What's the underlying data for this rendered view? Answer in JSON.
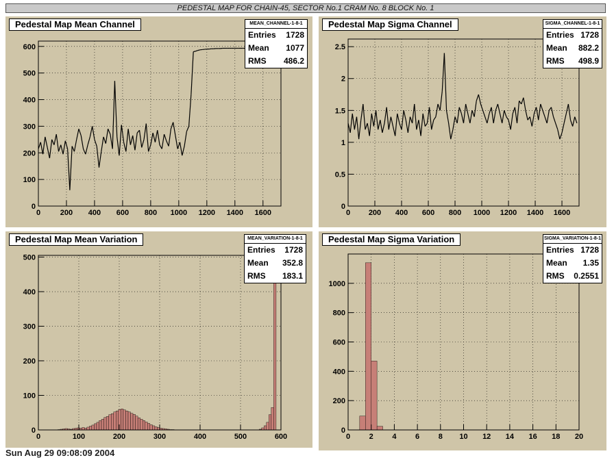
{
  "banner": "PEDESTAL MAP FOR CHAIN-45, SECTOR No.1 CRAM No. 8 BLOCK No. 1",
  "footer": "Sun Aug 29 09:08:09 2004",
  "colors": {
    "pad_bg": "#cfc5a8",
    "fill": "#c77f77",
    "line": "#000000"
  },
  "chart_data": [
    {
      "type": "line",
      "title": "Pedestal Map Mean Channel",
      "stats": {
        "name": "MEAN_CHANNEL-1-8-1",
        "entries": "1728",
        "mean": "1077",
        "rms": "486.2"
      },
      "xlim": [
        0,
        1728
      ],
      "ylim": [
        0,
        620
      ],
      "xticks": [
        0,
        200,
        400,
        600,
        800,
        1000,
        1200,
        1400,
        1600
      ],
      "yticks": [
        0,
        100,
        200,
        300,
        400,
        500,
        600
      ],
      "x_step": 16,
      "values": [
        215,
        240,
        195,
        260,
        220,
        180,
        250,
        230,
        270,
        205,
        230,
        195,
        245,
        215,
        60,
        225,
        205,
        250,
        290,
        265,
        215,
        195,
        230,
        260,
        300,
        250,
        225,
        145,
        205,
        260,
        235,
        290,
        270,
        215,
        470,
        260,
        190,
        305,
        240,
        205,
        290,
        230,
        265,
        210,
        275,
        285,
        220,
        250,
        310,
        205,
        230,
        275,
        240,
        285,
        230,
        215,
        270,
        245,
        225,
        290,
        315,
        265,
        215,
        240,
        190,
        225,
        280,
        300,
        420,
        580,
        582,
        585,
        587,
        588,
        589,
        590,
        590,
        591,
        591,
        592,
        592,
        592,
        593,
        593,
        593,
        593,
        593,
        593,
        593,
        593,
        593,
        593,
        593,
        593,
        593,
        593,
        593,
        593,
        593,
        593,
        593,
        593,
        593,
        593,
        593,
        593,
        593,
        593
      ]
    },
    {
      "type": "line",
      "title": "Pedestal Map Sigma Channel",
      "stats": {
        "name": "SIGMA_CHANNEL-1-8-1",
        "entries": "1728",
        "mean": "882.2",
        "rms": "498.9"
      },
      "xlim": [
        0,
        1728
      ],
      "ylim": [
        0,
        2.62
      ],
      "xticks": [
        0,
        200,
        400,
        600,
        800,
        1000,
        1200,
        1400,
        1600
      ],
      "yticks": [
        0,
        0.5,
        1,
        1.5,
        2,
        2.5
      ],
      "ytick_labels": [
        "0",
        "0.5",
        "1",
        "1.5",
        "2",
        "2.5"
      ],
      "x_step": 16,
      "values": [
        1.3,
        1.15,
        1.45,
        1.2,
        1.4,
        1.05,
        1.35,
        1.6,
        1.2,
        1.3,
        1.1,
        1.45,
        1.25,
        1.5,
        1.2,
        1.35,
        1.15,
        1.3,
        1.55,
        1.2,
        1.4,
        1.25,
        1.1,
        1.45,
        1.3,
        1.2,
        1.5,
        1.35,
        1.15,
        1.4,
        1.3,
        1.6,
        1.2,
        1.35,
        1.1,
        1.45,
        1.25,
        1.3,
        1.55,
        1.2,
        1.35,
        1.4,
        1.6,
        1.5,
        1.8,
        2.4,
        1.5,
        1.3,
        1.05,
        1.2,
        1.4,
        1.3,
        1.55,
        1.45,
        1.3,
        1.6,
        1.45,
        1.3,
        1.5,
        1.4,
        1.65,
        1.75,
        1.6,
        1.5,
        1.4,
        1.3,
        1.45,
        1.55,
        1.3,
        1.5,
        1.6,
        1.45,
        1.3,
        1.5,
        1.4,
        1.35,
        1.2,
        1.45,
        1.55,
        1.3,
        1.65,
        1.6,
        1.7,
        1.5,
        1.35,
        1.4,
        1.25,
        1.45,
        1.55,
        1.35,
        1.6,
        1.5,
        1.4,
        1.3,
        1.5,
        1.55,
        1.4,
        1.3,
        1.2,
        1.05,
        1.15,
        1.3,
        1.45,
        1.6,
        1.35,
        1.25,
        1.4,
        1.3
      ]
    },
    {
      "type": "bar",
      "title": "Pedestal Map Mean Variation",
      "stats": {
        "name": "MEAN_VARIATION-1-8-1",
        "entries": "1728",
        "mean": "352.8",
        "rms": "183.1"
      },
      "xlim": [
        0,
        600
      ],
      "ylim": [
        0,
        505
      ],
      "xticks": [
        0,
        100,
        200,
        300,
        400,
        500,
        600
      ],
      "yticks": [
        0,
        100,
        200,
        300,
        400,
        500
      ],
      "bin_width": 6,
      "values": [
        0,
        0,
        0,
        0,
        0,
        0,
        0,
        0,
        1,
        2,
        3,
        4,
        3,
        2,
        4,
        5,
        6,
        5,
        7,
        5,
        8,
        11,
        14,
        18,
        22,
        27,
        31,
        36,
        39,
        44,
        47,
        52,
        55,
        59,
        61,
        58,
        55,
        52,
        48,
        45,
        40,
        35,
        31,
        27,
        23,
        19,
        15,
        12,
        9,
        7,
        5,
        4,
        3,
        2,
        1,
        1,
        0,
        0,
        0,
        0,
        0,
        0,
        0,
        0,
        0,
        0,
        0,
        0,
        0,
        0,
        0,
        0,
        0,
        0,
        0,
        0,
        0,
        0,
        0,
        0,
        0,
        0,
        0,
        0,
        0,
        0,
        0,
        0,
        0,
        0,
        0,
        2,
        6,
        12,
        22,
        44,
        65,
        430,
        0,
        0
      ]
    },
    {
      "type": "bar",
      "title": "Pedestal Map Sigma Variation",
      "stats": {
        "name": "SIGMA_VARIATION-1-8-1",
        "entries": "1728",
        "mean": "1.35",
        "rms": "0.2551"
      },
      "xlim": [
        0,
        20
      ],
      "ylim": [
        0,
        1200
      ],
      "xticks": [
        0,
        2,
        4,
        6,
        8,
        10,
        12,
        14,
        16,
        18,
        20
      ],
      "yticks": [
        0,
        200,
        400,
        600,
        800,
        1000
      ],
      "bin_width": 0.5,
      "values": [
        0,
        0,
        95,
        1140,
        470,
        25,
        0,
        0,
        0,
        0,
        0,
        0,
        0,
        0,
        0,
        0,
        0,
        0,
        0,
        0,
        0,
        0,
        0,
        0,
        0,
        0,
        0,
        0,
        0,
        0,
        0,
        0,
        0,
        0,
        0,
        0,
        0,
        0,
        0,
        0
      ]
    }
  ]
}
